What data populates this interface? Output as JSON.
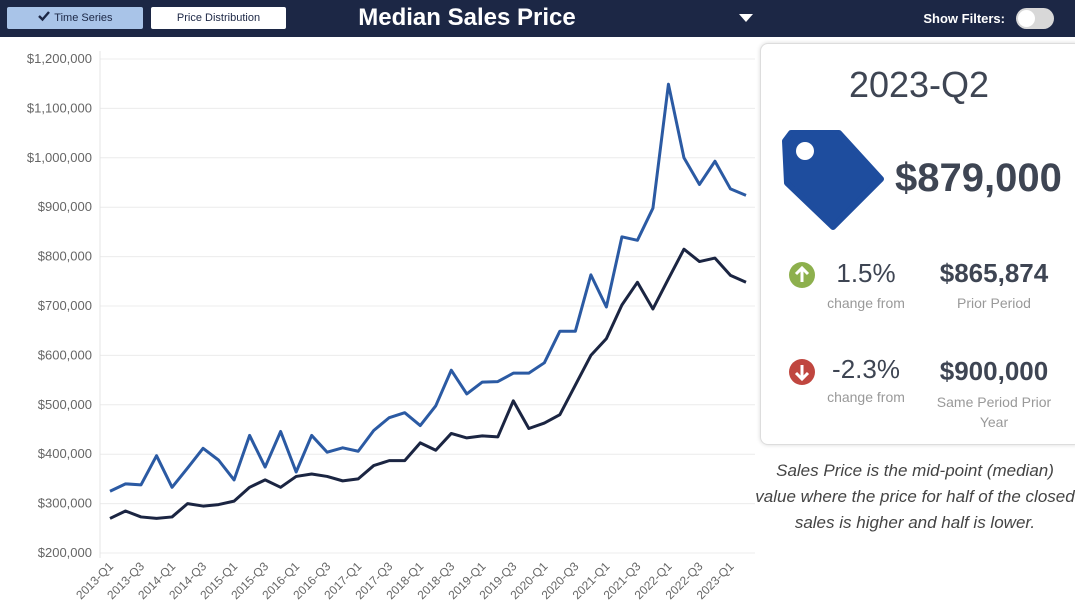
{
  "header": {
    "buttons": [
      "Time Series",
      "Price Distribution"
    ],
    "title": "Median Sales Price",
    "filters_label": "Show Filters:"
  },
  "chart_data": {
    "type": "line",
    "categories": [
      "2013-Q1",
      null,
      "2013-Q3",
      null,
      "2014-Q1",
      null,
      "2014-Q3",
      null,
      "2015-Q1",
      null,
      "2015-Q3",
      null,
      "2016-Q1",
      null,
      "2016-Q3",
      null,
      "2017-Q1",
      null,
      "2017-Q3",
      null,
      "2018-Q1",
      null,
      "2018-Q3",
      null,
      "2019-Q1",
      null,
      "2019-Q3",
      null,
      "2020-Q1",
      null,
      "2020-Q3",
      null,
      "2021-Q1",
      null,
      "2021-Q3",
      null,
      "2022-Q1",
      null,
      "2022-Q3",
      null,
      "2023-Q1",
      null
    ],
    "series": [
      {
        "color": "#2b5aa3",
        "values": [
          325000,
          340000,
          338000,
          397000,
          333000,
          372000,
          412000,
          388000,
          348000,
          438000,
          374000,
          446000,
          364000,
          438000,
          404000,
          413000,
          406000,
          448000,
          474000,
          484000,
          458000,
          498000,
          570000,
          522000,
          546000,
          547000,
          564000,
          564000,
          585000,
          649000,
          649000,
          763000,
          698000,
          840000,
          833000,
          898000,
          1149000,
          1000000,
          946000,
          993000,
          937000,
          924000
        ]
      },
      {
        "color": "#1b2542",
        "values": [
          270000,
          285000,
          273000,
          270000,
          273000,
          300000,
          295000,
          298000,
          305000,
          333000,
          348000,
          333000,
          355000,
          360000,
          355000,
          346000,
          350000,
          377000,
          387000,
          387000,
          423000,
          408000,
          442000,
          433000,
          437000,
          435000,
          508000,
          452000,
          463000,
          480000,
          540000,
          600000,
          634000,
          702000,
          748000,
          694000,
          755000,
          815000,
          790000,
          797000,
          762000,
          748000
        ]
      }
    ],
    "ylim": [
      200000,
      1200000
    ],
    "yticks": [
      {
        "value": 200000,
        "label": "$200,000"
      },
      {
        "value": 300000,
        "label": "$300,000"
      },
      {
        "value": 400000,
        "label": "$400,000"
      },
      {
        "value": 500000,
        "label": "$500,000"
      },
      {
        "value": 600000,
        "label": "$600,000"
      },
      {
        "value": 700000,
        "label": "$700,000"
      },
      {
        "value": 800000,
        "label": "$800,000"
      },
      {
        "value": 900000,
        "label": "$900,000"
      },
      {
        "value": 1000000,
        "label": "$1,000,000"
      },
      {
        "value": 1100000,
        "label": "$1,100,000"
      },
      {
        "value": 1200000,
        "label": "$1,200,000"
      }
    ],
    "grid": true
  },
  "summary": {
    "period": "2023-Q2",
    "price": "$879,000",
    "prior_change": "1.5%",
    "prior_change_note": "change from",
    "prior_value": "$865,874",
    "prior_label": "Prior Period",
    "year_change": "-2.3%",
    "year_change_note": "change from",
    "year_value": "$900,000",
    "year_label": "Same Period Prior Year",
    "description": "Sales Price is the mid-point (median) value where the price for half of the closed sales is higher and half is lower."
  }
}
